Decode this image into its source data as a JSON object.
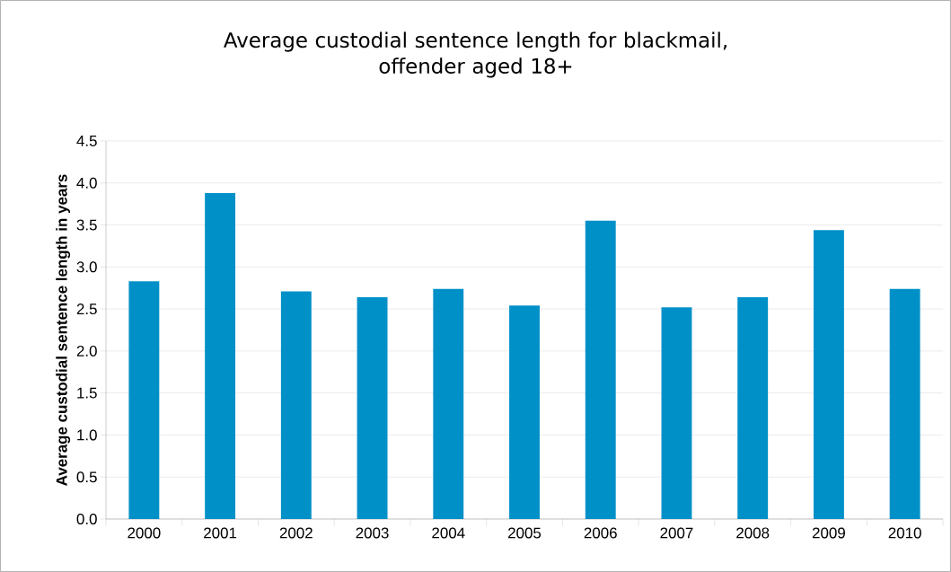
{
  "chart_data": {
    "type": "bar",
    "title": "Average custodial sentence length for blackmail,\noffender aged 18+",
    "ylabel": "Average custodial sentence length in years",
    "categories": [
      "2000",
      "2001",
      "2002",
      "2003",
      "2004",
      "2005",
      "2006",
      "2007",
      "2008",
      "2009",
      "2010"
    ],
    "values": [
      2.83,
      3.88,
      2.71,
      2.64,
      2.74,
      2.54,
      3.55,
      2.52,
      2.64,
      3.44,
      2.74
    ],
    "color": "#0090c8",
    "ylim": [
      0,
      4.5
    ],
    "yticks": [
      {
        "value": 0,
        "label": "0.0"
      },
      {
        "value": 0.5,
        "label": "0.5"
      },
      {
        "value": 1,
        "label": "1.0"
      },
      {
        "value": 1.5,
        "label": "1.5"
      },
      {
        "value": 2,
        "label": "2.0"
      },
      {
        "value": 2.5,
        "label": "2.5"
      },
      {
        "value": 3,
        "label": "3.0"
      },
      {
        "value": 3.5,
        "label": "3.5"
      },
      {
        "value": 4,
        "label": "4.0"
      },
      {
        "value": 4.5,
        "label": "4.5"
      }
    ],
    "grid": "y"
  }
}
